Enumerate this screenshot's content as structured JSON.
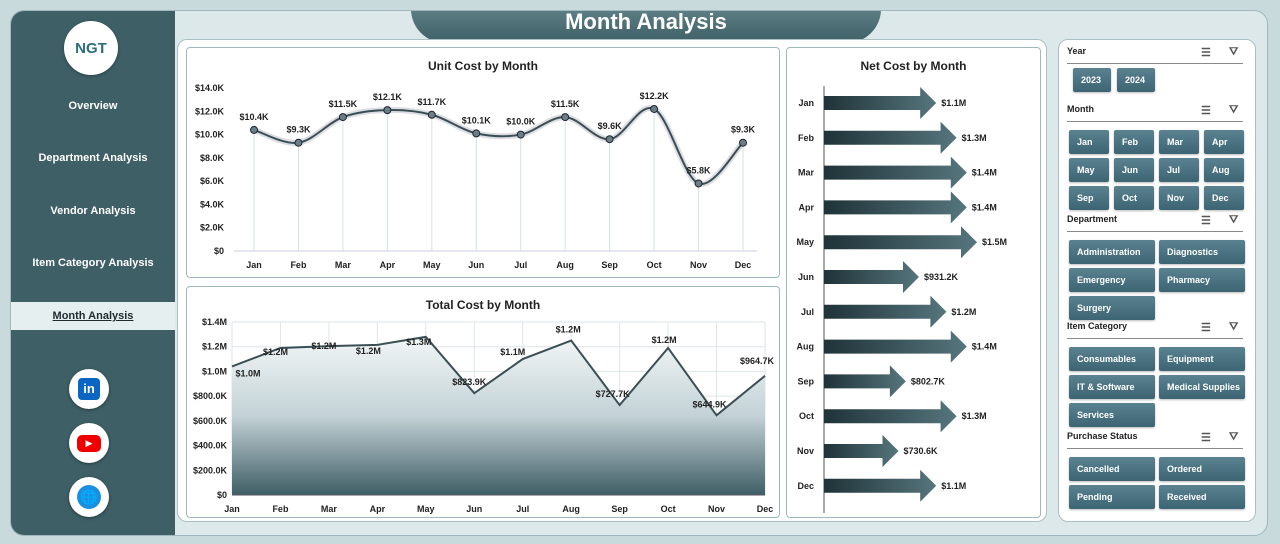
{
  "title": "Month Analysis",
  "logo": "NGT",
  "nav": [
    "Overview",
    "Department Analysis",
    "Vendor Analysis",
    "Item Category Analysis",
    "Month Analysis"
  ],
  "nav_active": 4,
  "social": [
    "linkedin-icon",
    "youtube-icon",
    "web-icon"
  ],
  "colors": {
    "sidebar": "#3e5f66",
    "accent": "#3c6472",
    "bg": "#dce8ea"
  },
  "slicers": [
    {
      "title": "Year",
      "items": [
        "2023",
        "2024"
      ]
    },
    {
      "title": "Month",
      "items": [
        "Jan",
        "Feb",
        "Mar",
        "Apr",
        "May",
        "Jun",
        "Jul",
        "Aug",
        "Sep",
        "Oct",
        "Nov",
        "Dec"
      ]
    },
    {
      "title": "Department",
      "items": [
        "Administration",
        "Diagnostics",
        "Emergency",
        "Pharmacy",
        "Surgery"
      ]
    },
    {
      "title": "Item Category",
      "items": [
        "Consumables",
        "Equipment",
        "IT & Software",
        "Medical Supplies",
        "Services"
      ]
    },
    {
      "title": "Purchase Status",
      "items": [
        "Cancelled",
        "Ordered",
        "Pending",
        "Received"
      ]
    }
  ],
  "chart_data": [
    {
      "type": "line",
      "title": "Unit Cost by Month",
      "categories": [
        "Jan",
        "Feb",
        "Mar",
        "Apr",
        "May",
        "Jun",
        "Jul",
        "Aug",
        "Sep",
        "Oct",
        "Nov",
        "Dec"
      ],
      "values": [
        10400,
        9300,
        11500,
        12100,
        11700,
        10100,
        10000,
        11500,
        9600,
        12200,
        5800,
        9300
      ],
      "labels": [
        "$10.4K",
        "$9.3K",
        "$11.5K",
        "$12.1K",
        "$11.7K",
        "$10.1K",
        "$10.0K",
        "$11.5K",
        "$9.6K",
        "$12.2K",
        "$5.8K",
        "$9.3K"
      ],
      "yticks": [
        "$0",
        "$2.0K",
        "$4.0K",
        "$6.0K",
        "$8.0K",
        "$10.0K",
        "$12.0K",
        "$14.0K"
      ],
      "ylim": [
        0,
        14000
      ]
    },
    {
      "type": "area",
      "title": "Total Cost by Month",
      "categories": [
        "Jan",
        "Feb",
        "Mar",
        "Apr",
        "May",
        "Jun",
        "Jul",
        "Aug",
        "Sep",
        "Oct",
        "Nov",
        "Dec"
      ],
      "values": [
        1040000,
        1190000,
        1205000,
        1215000,
        1280000,
        823900,
        1100000,
        1250000,
        727700,
        1190000,
        644900,
        964700
      ],
      "labels": [
        "$1.0M",
        "$1.2M",
        "$1.2M",
        "$1.2M",
        "$1.3M",
        "$823.9K",
        "$1.1M",
        "$1.2M",
        "$727.7K",
        "$1.2M",
        "$644.9K",
        "$964.7K"
      ],
      "yticks": [
        "$0",
        "$200.0K",
        "$400.0K",
        "$600.0K",
        "$800.0K",
        "$1.0M",
        "$1.2M",
        "$1.4M"
      ],
      "ylim": [
        0,
        1400000
      ]
    },
    {
      "type": "bar",
      "orientation": "horizontal",
      "title": "Net Cost by Month",
      "categories": [
        "Jan",
        "Feb",
        "Mar",
        "Apr",
        "May",
        "Jun",
        "Jul",
        "Aug",
        "Sep",
        "Oct",
        "Nov",
        "Dec"
      ],
      "values": [
        1100000,
        1300000,
        1400000,
        1400000,
        1500000,
        931200,
        1200000,
        1400000,
        802700,
        1300000,
        730600,
        1100000
      ],
      "labels": [
        "$1.1M",
        "$1.3M",
        "$1.4M",
        "$1.4M",
        "$1.5M",
        "$931.2K",
        "$1.2M",
        "$1.4M",
        "$802.7K",
        "$1.3M",
        "$730.6K",
        "$1.1M"
      ]
    }
  ]
}
